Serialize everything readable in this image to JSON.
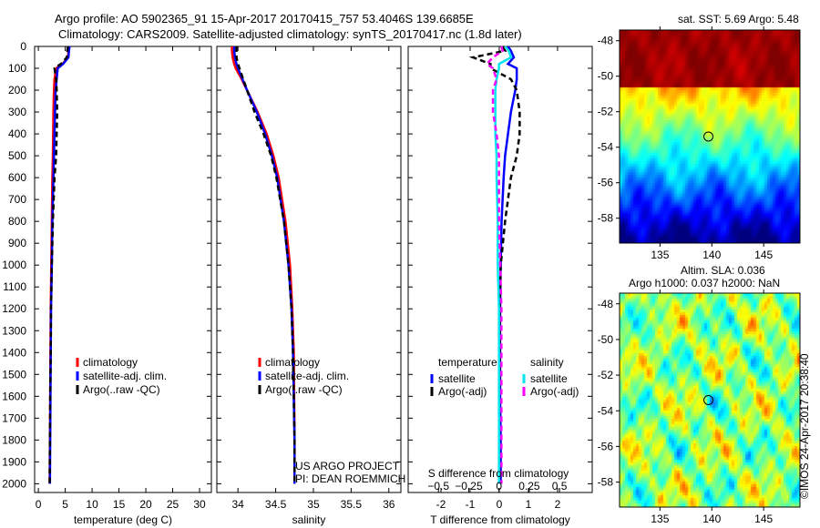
{
  "title_line1": "Argo profile: AO 5902365_91 15-Apr-2017 20170415_757 53.4046S 139.6685E",
  "title_line2": "Climatology: CARS2009. Satellite-adjusted climatology: synTS_20170417.nc (1.8d later)",
  "colors": {
    "climatology": "#ff0000",
    "satellite": "#0000ff",
    "argo": "#000000",
    "sal_satellite": "#00e5ee",
    "sal_argo": "#ff00ff"
  },
  "chart_data": [
    {
      "type": "line",
      "id": "temperature",
      "xlabel": "temperature (deg C)",
      "ylabel": "",
      "xlim": [
        -0.7,
        32.2
      ],
      "ylim": [
        0,
        2040
      ],
      "xticks": [
        0,
        5,
        10,
        15,
        20,
        25,
        30
      ],
      "yticks": [
        0,
        100,
        200,
        300,
        400,
        500,
        600,
        700,
        800,
        900,
        1000,
        1100,
        1200,
        1300,
        1400,
        1500,
        1600,
        1700,
        1800,
        1900,
        2000
      ],
      "depth": [
        0,
        20,
        50,
        80,
        100,
        150,
        200,
        300,
        400,
        500,
        600,
        800,
        1000,
        1200,
        1400,
        1600,
        1800,
        2000
      ],
      "series": [
        {
          "name": "climatology",
          "color": "#ff0000",
          "values": [
            5.6,
            5.6,
            5.5,
            4.5,
            3.3,
            3.0,
            2.9,
            2.8,
            2.75,
            2.7,
            2.6,
            2.5,
            2.4,
            2.3,
            2.25,
            2.2,
            2.15,
            2.1
          ]
        },
        {
          "name": "satellite-adj. clim.",
          "color": "#0000ff",
          "values": [
            5.8,
            5.7,
            5.6,
            4.6,
            3.6,
            3.4,
            3.2,
            3.1,
            3.0,
            2.9,
            2.8,
            2.6,
            2.5,
            2.35,
            2.3,
            2.25,
            2.2,
            2.15
          ]
        },
        {
          "name": "Argo(..raw -QC)",
          "color": "#000000",
          "dashed": true,
          "values": [
            5.5,
            5.4,
            5.3,
            4.2,
            3.0,
            3.3,
            3.4,
            3.5,
            3.4,
            3.3,
            3.0,
            2.7,
            2.5,
            2.35,
            2.3,
            2.2,
            2.15,
            2.1
          ]
        }
      ],
      "legend": [
        "climatology",
        "satellite-adj. clim.",
        "Argo(..raw -QC)"
      ]
    },
    {
      "type": "line",
      "id": "salinity",
      "xlabel": "salinity",
      "xlim": [
        33.72,
        36.16
      ],
      "ylim": [
        0,
        2040
      ],
      "xticks": [
        34,
        34.5,
        35,
        35.5,
        36
      ],
      "xticklabels": [
        "34",
        "34.5",
        "35",
        "35.5",
        "36"
      ],
      "depth": [
        0,
        20,
        50,
        80,
        100,
        150,
        200,
        300,
        400,
        500,
        600,
        800,
        1000,
        1200,
        1400,
        1600,
        1800,
        2000
      ],
      "series": [
        {
          "name": "climatology",
          "color": "#ff0000",
          "values": [
            33.92,
            33.92,
            33.93,
            33.95,
            33.97,
            34.05,
            34.12,
            34.26,
            34.38,
            34.47,
            34.54,
            34.63,
            34.69,
            34.72,
            34.74,
            34.745,
            34.75,
            34.75
          ]
        },
        {
          "name": "satellite-adj. clim.",
          "color": "#0000ff",
          "values": [
            33.95,
            33.95,
            33.96,
            33.98,
            34.0,
            34.06,
            34.12,
            34.25,
            34.36,
            34.45,
            34.52,
            34.61,
            34.67,
            34.71,
            34.73,
            34.74,
            34.75,
            34.75
          ]
        },
        {
          "name": "Argo(..raw -QC)",
          "color": "#000000",
          "dashed": true,
          "values": [
            33.98,
            33.98,
            33.98,
            34.0,
            34.02,
            34.07,
            34.12,
            34.22,
            34.34,
            34.44,
            34.51,
            34.61,
            34.67,
            34.71,
            34.73,
            34.74,
            34.75,
            34.75
          ]
        }
      ],
      "legend": [
        "climatology",
        "satellite-adj. clim.",
        "Argo(..raw -QC)"
      ],
      "annotation": [
        "US ARGO PROJECT",
        "PI: DEAN ROEMMICH"
      ]
    },
    {
      "type": "line",
      "id": "differences",
      "xlabel": "T difference from climatology",
      "x2label": "S difference from climatology",
      "xlim": [
        -3.125,
        3.19
      ],
      "x2lim": [
        -0.75,
        0.77
      ],
      "ylim": [
        0,
        2040
      ],
      "xticks": [
        -2,
        -1,
        0,
        1,
        2
      ],
      "x2ticks": [
        -0.5,
        -0.25,
        0,
        0.25,
        0.5
      ],
      "depth": [
        0,
        20,
        50,
        80,
        100,
        150,
        200,
        300,
        400,
        500,
        600,
        800,
        1000,
        1200,
        1400,
        1600,
        1800,
        2000
      ],
      "series": [
        {
          "name": "temperature satellite",
          "axis": "T",
          "color": "#0000ff",
          "values": [
            0.3,
            0.4,
            0.5,
            0.3,
            0.6,
            0.6,
            0.55,
            0.4,
            0.3,
            0.2,
            0.15,
            0.08,
            0.05,
            0.03,
            0.03,
            0.03,
            0.05,
            0.05
          ]
        },
        {
          "name": "temperature Argo(-adj)",
          "axis": "T",
          "color": "#000000",
          "dashed": true,
          "values": [
            0.1,
            0.2,
            -0.9,
            -0.3,
            -0.3,
            0.4,
            0.6,
            0.7,
            0.7,
            0.6,
            0.4,
            0.2,
            0.05,
            0.02,
            0.02,
            0.0,
            0.0,
            0.0
          ]
        },
        {
          "name": "salinity satellite",
          "axis": "S",
          "color": "#00e5ee",
          "values": [
            0.05,
            0.08,
            0.1,
            0.0,
            0.0,
            -0.02,
            -0.03,
            -0.03,
            -0.03,
            -0.02,
            -0.02,
            -0.01,
            -0.01,
            0,
            0,
            0,
            0,
            0
          ]
        },
        {
          "name": "salinity Argo(-adj)",
          "axis": "S",
          "color": "#ff00ff",
          "dashed": true,
          "values": [
            0.02,
            0.03,
            -0.05,
            -0.1,
            -0.05,
            -0.02,
            -0.05,
            -0.05,
            -0.02,
            0,
            0,
            0,
            0.01,
            0.02,
            0.02,
            0.02,
            0.02,
            0.02
          ]
        }
      ],
      "legend": {
        "temperature_header": "temperature",
        "salinity_header": "salinity",
        "items": [
          "satellite",
          "Argo(-adj)",
          "satellite",
          "Argo(-adj)"
        ]
      }
    },
    {
      "type": "heatmap",
      "id": "sst_map",
      "title": "sat. SST: 5.69 Argo: 5.48",
      "xlim": [
        131.1,
        148.5
      ],
      "ylim": [
        -59.4,
        -47.4
      ],
      "xticks": [
        135,
        140,
        145
      ],
      "yticks": [
        -48,
        -50,
        -52,
        -54,
        -56,
        -58
      ],
      "marker": [
        139.67,
        -53.4
      ]
    },
    {
      "type": "heatmap",
      "id": "sla_map",
      "title": "Altim. SLA: 0.036",
      "subtitle": "Argo h1000: 0.037 h2000: NaN",
      "xlim": [
        131.1,
        148.5
      ],
      "ylim": [
        -59.4,
        -47.4
      ],
      "xticks": [
        135,
        140,
        145
      ],
      "yticks": [
        -48,
        -50,
        -52,
        -54,
        -56,
        -58
      ],
      "marker": [
        139.67,
        -53.4
      ]
    }
  ],
  "credit": "©IMOS 24-Apr-2017 20:38:40"
}
